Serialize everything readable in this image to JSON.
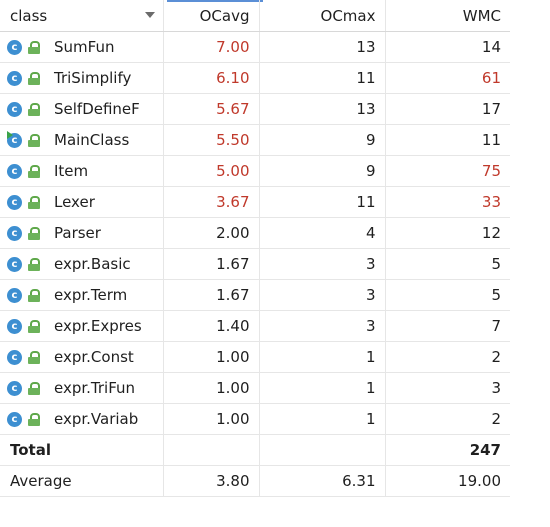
{
  "columns": {
    "class": "class",
    "ocavg": "OCavg",
    "ocmax": "OCmax",
    "wmc": "WMC"
  },
  "rows": [
    {
      "name": "SumFun",
      "ocavg": "7.00",
      "ocmax": "13",
      "wmc": "14"
    },
    {
      "name": "TriSimplify",
      "ocavg": "6.10",
      "ocmax": "11",
      "wmc": "61"
    },
    {
      "name": "SelfDefineF",
      "ocavg": "5.67",
      "ocmax": "13",
      "wmc": "17"
    },
    {
      "name": "MainClass",
      "ocavg": "5.50",
      "ocmax": "9",
      "wmc": "11"
    },
    {
      "name": "Item",
      "ocavg": "5.00",
      "ocmax": "9",
      "wmc": "75"
    },
    {
      "name": "Lexer",
      "ocavg": "3.67",
      "ocmax": "11",
      "wmc": "33"
    },
    {
      "name": "Parser",
      "ocavg": "2.00",
      "ocmax": "4",
      "wmc": "12"
    },
    {
      "name": "expr.Basic",
      "ocavg": "1.67",
      "ocmax": "3",
      "wmc": "5"
    },
    {
      "name": "expr.Term",
      "ocavg": "1.67",
      "ocmax": "3",
      "wmc": "5"
    },
    {
      "name": "expr.Expres",
      "ocavg": "1.40",
      "ocmax": "3",
      "wmc": "7"
    },
    {
      "name": "expr.Const",
      "ocavg": "1.00",
      "ocmax": "1",
      "wmc": "2"
    },
    {
      "name": "expr.TriFun",
      "ocavg": "1.00",
      "ocmax": "1",
      "wmc": "3"
    },
    {
      "name": "expr.Variab",
      "ocavg": "1.00",
      "ocmax": "1",
      "wmc": "2"
    }
  ],
  "total": {
    "label": "Total",
    "ocavg": "",
    "ocmax": "",
    "wmc": "247"
  },
  "average": {
    "label": "Average",
    "ocavg": "3.80",
    "ocmax": "6.31",
    "wmc": "19.00"
  },
  "icons": {
    "class": "class-icon",
    "access": "lock-icon",
    "run": "run-marker-icon"
  },
  "colors": {
    "warning": "#c0392b",
    "class_icon": "#3d8fd1",
    "lock": "#6cb25a"
  }
}
